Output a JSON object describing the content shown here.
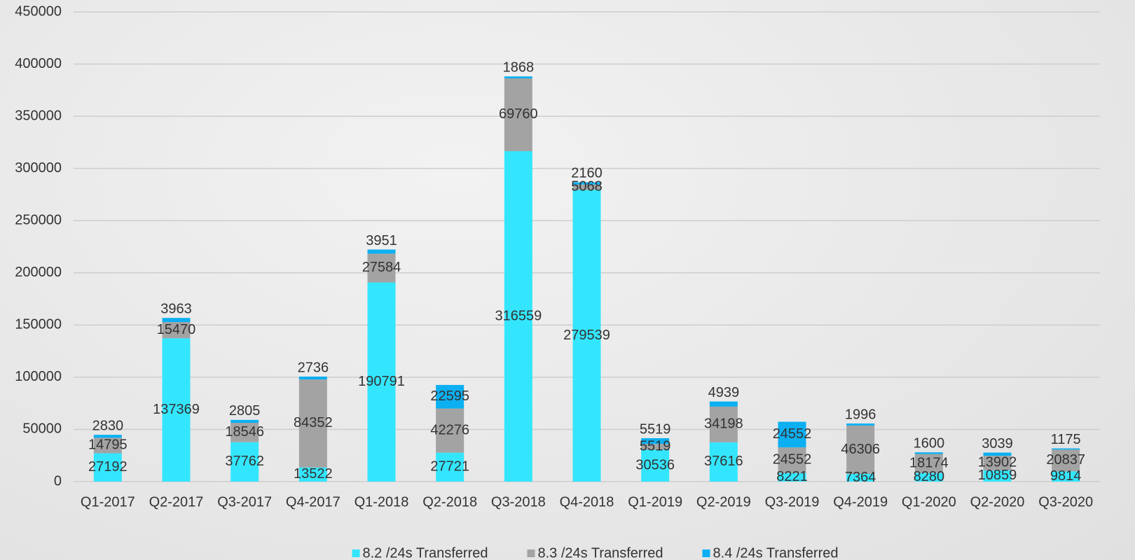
{
  "chart_data": {
    "type": "stacked_bar",
    "categories": [
      "Q1-2017",
      "Q2-2017",
      "Q3-2017",
      "Q4-2017",
      "Q1-2018",
      "Q2-2018",
      "Q3-2018",
      "Q4-2018",
      "Q1-2019",
      "Q2-2019",
      "Q3-2019",
      "Q4-2019",
      "Q1-2020",
      "Q2-2020",
      "Q3-2020"
    ],
    "series": [
      {
        "name": "8.2 /24s Transferred",
        "color": "#33e6fe",
        "values": [
          27192,
          137369,
          37762,
          13522,
          190791,
          27721,
          316559,
          279539,
          30536,
          37616,
          8221,
          7364,
          8280,
          10859,
          9814
        ]
      },
      {
        "name": "8.3 /24s Transferred",
        "color": "#a3a3a3",
        "values": [
          14795,
          15470,
          18546,
          84352,
          27584,
          42276,
          69760,
          5068,
          5519,
          34198,
          24552,
          46306,
          18174,
          13902,
          20837
        ]
      },
      {
        "name": "8.4 /24s Transferred",
        "color": "#0cb0f2",
        "values": [
          2830,
          3963,
          2805,
          2736,
          3951,
          22595,
          1868,
          2160,
          5519,
          4939,
          24552,
          1996,
          1600,
          3039,
          1175
        ]
      }
    ],
    "ylim": [
      0,
      450000
    ],
    "yticks": [
      0,
      50000,
      100000,
      150000,
      200000,
      250000,
      300000,
      350000,
      400000,
      450000
    ],
    "grid": true,
    "legend": "bottom"
  }
}
